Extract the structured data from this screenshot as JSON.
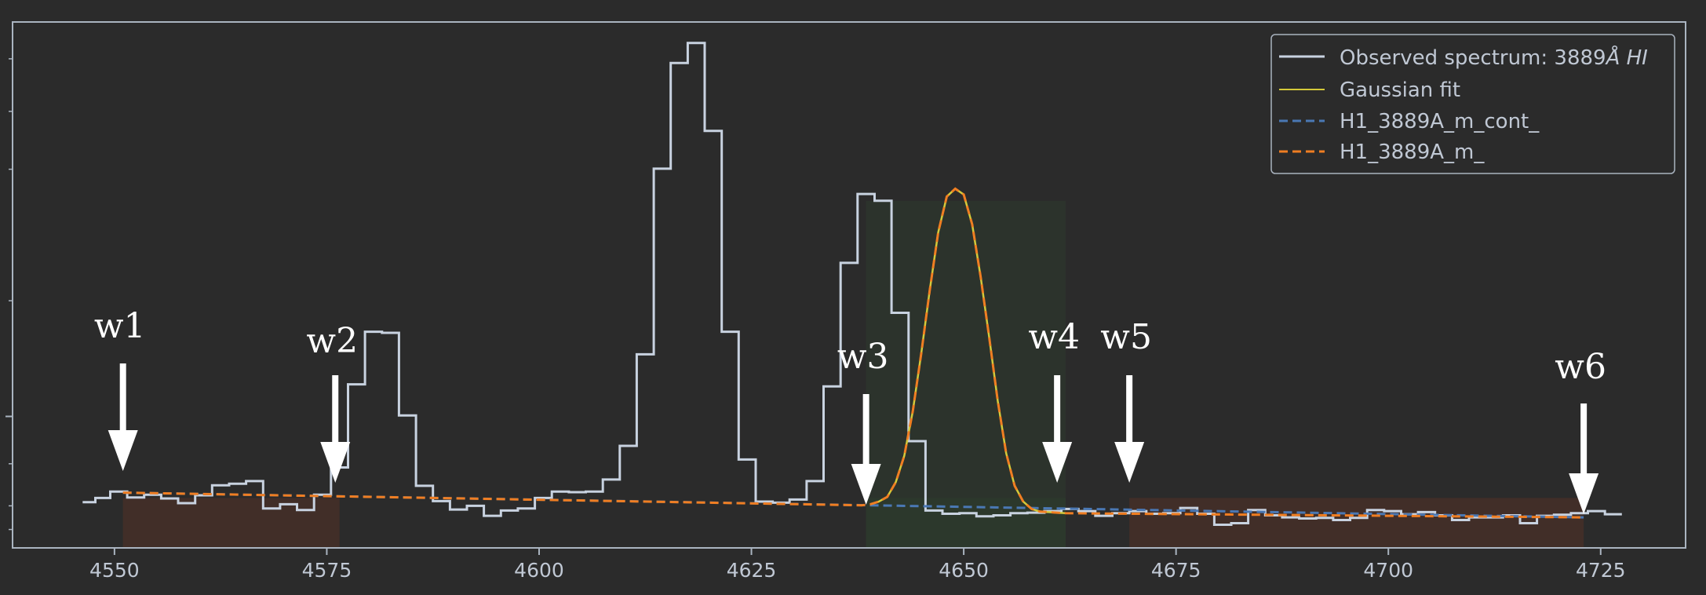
{
  "chart_data": {
    "type": "line",
    "title": "",
    "xlabel": "",
    "ylabel": "",
    "xlim": [
      4538,
      4735
    ],
    "ylim": [
      0,
      1
    ],
    "grid": false,
    "legend_placement": "top-right",
    "x_ticks": [
      "4550",
      "4575",
      "4600",
      "4625",
      "4650",
      "4675",
      "4700",
      "4725"
    ],
    "legend": [
      {
        "label": "Observed spectrum: 3889",
        "label_suffix": "Å HI",
        "style": "solid",
        "color": "#c8d2e0"
      },
      {
        "label": "Gaussian fit",
        "style": "solid",
        "color": "#d4c93a"
      },
      {
        "label": "H1_3889A_m_cont_",
        "style": "dashed",
        "color": "#4a78b4"
      },
      {
        "label": "H1_3889A_m_",
        "style": "dashed",
        "color": "#f07e22"
      }
    ],
    "series": [
      {
        "name": "Observed spectrum: 3889Å HI",
        "style": "step",
        "color": "#c8d2e0",
        "x": [
          4547,
          4548.5,
          4550.5,
          4552.5,
          4554.5,
          4556.5,
          4558.5,
          4560.5,
          4562.5,
          4564.5,
          4566.5,
          4568.5,
          4570.5,
          4572.5,
          4574.5,
          4576.5,
          4578.5,
          4580.5,
          4582.5,
          4584.5,
          4586.5,
          4588.5,
          4590.5,
          4592.5,
          4594.5,
          4596.5,
          4598.5,
          4600.5,
          4602.5,
          4604.5,
          4606.5,
          4608.5,
          4610.5,
          4612.5,
          4614.5,
          4616.5,
          4618.5,
          4620.5,
          4622.5,
          4624.5,
          4626.5,
          4628.5,
          4630.5,
          4632.5,
          4634.5,
          4636.5,
          4638.5,
          4640.5,
          4642.5,
          4644.5,
          4646.5,
          4648.5,
          4650.5,
          4652.5,
          4654.5,
          4656.5,
          4658.5,
          4660.5,
          4662.5,
          4664.5,
          4666.5,
          4668.5,
          4670.5,
          4672.5,
          4674.5,
          4676.5,
          4678.5,
          4680.5,
          4682.5,
          4684.5,
          4686.5,
          4688.5,
          4690.5,
          4692.5,
          4694.5,
          4696.5,
          4698.5,
          4700.5,
          4702.5,
          4704.5,
          4706.5,
          4708.5,
          4710.5,
          4712.5,
          4714.5,
          4716.5,
          4718.5,
          4720.5,
          4722.5,
          4724.5,
          4726.5
        ],
        "y": [
          0.087,
          0.095,
          0.107,
          0.096,
          0.101,
          0.094,
          0.085,
          0.1,
          0.119,
          0.122,
          0.127,
          0.075,
          0.083,
          0.072,
          0.101,
          0.153,
          0.311,
          0.411,
          0.409,
          0.252,
          0.118,
          0.089,
          0.073,
          0.08,
          0.061,
          0.071,
          0.075,
          0.095,
          0.107,
          0.106,
          0.107,
          0.13,
          0.194,
          0.368,
          0.721,
          0.922,
          0.96,
          0.793,
          0.411,
          0.168,
          0.088,
          0.086,
          0.092,
          0.127,
          0.307,
          0.542,
          0.673,
          0.66,
          0.447,
          0.203,
          0.071,
          0.065,
          0.066,
          0.06,
          0.062,
          0.066,
          0.067,
          0.07,
          0.074,
          0.07,
          0.061,
          0.066,
          0.07,
          0.065,
          0.066,
          0.076,
          0.065,
          0.044,
          0.047,
          0.072,
          0.062,
          0.058,
          0.056,
          0.057,
          0.053,
          0.057,
          0.072,
          0.07,
          0.064,
          0.068,
          0.062,
          0.053,
          0.058,
          0.058,
          0.062,
          0.047,
          0.061,
          0.063,
          0.066,
          0.07,
          0.064
        ]
      },
      {
        "name": "Gaussian fit",
        "style": "solid",
        "color": "#d4c93a",
        "x": [
          4639,
          4640,
          4641,
          4642,
          4643,
          4644,
          4645,
          4646,
          4647,
          4648,
          4649,
          4650,
          4651,
          4652,
          4653,
          4654,
          4655,
          4656,
          4657,
          4658,
          4659,
          4660,
          4661,
          4662
        ],
        "y": [
          0.083,
          0.088,
          0.097,
          0.125,
          0.175,
          0.26,
          0.37,
          0.49,
          0.6,
          0.668,
          0.683,
          0.672,
          0.615,
          0.515,
          0.4,
          0.28,
          0.18,
          0.118,
          0.088,
          0.074,
          0.069,
          0.068,
          0.067,
          0.066
        ]
      },
      {
        "name": "H1_3889A_m_cont_",
        "style": "dashed",
        "color": "#4a78b4",
        "x": [
          4551,
          4723
        ],
        "y": [
          0.105,
          0.058
        ]
      },
      {
        "name": "H1_3889A_m_",
        "style": "dashed",
        "color": "#f07e22",
        "x": [
          4551,
          4638,
          4639,
          4640,
          4641,
          4642,
          4643,
          4644,
          4645,
          4646,
          4647,
          4648,
          4649,
          4650,
          4651,
          4652,
          4653,
          4654,
          4655,
          4656,
          4657,
          4658,
          4659,
          4660,
          4661,
          4662,
          4723
        ],
        "y": [
          0.105,
          0.081,
          0.083,
          0.088,
          0.097,
          0.125,
          0.175,
          0.26,
          0.37,
          0.49,
          0.6,
          0.668,
          0.683,
          0.672,
          0.615,
          0.515,
          0.4,
          0.28,
          0.18,
          0.118,
          0.088,
          0.074,
          0.069,
          0.068,
          0.067,
          0.066,
          0.058
        ]
      }
    ],
    "shaded_regions": [
      {
        "x0": 4551,
        "x1": 4576.5,
        "kind": "continuum",
        "color": "#4a3028"
      },
      {
        "x0": 4638.5,
        "x1": 4662,
        "kind": "line",
        "color": "#2e3a2e"
      },
      {
        "x0": 4669.5,
        "x1": 4723,
        "kind": "continuum",
        "color": "#4a3028"
      }
    ],
    "annotations": [
      {
        "label": "w1",
        "x": 4551
      },
      {
        "label": "w2",
        "x": 4576
      },
      {
        "label": "w3",
        "x": 4638.5
      },
      {
        "label": "w4",
        "x": 4661
      },
      {
        "label": "w5",
        "x": 4669.5
      },
      {
        "label": "w6",
        "x": 4723
      }
    ]
  }
}
